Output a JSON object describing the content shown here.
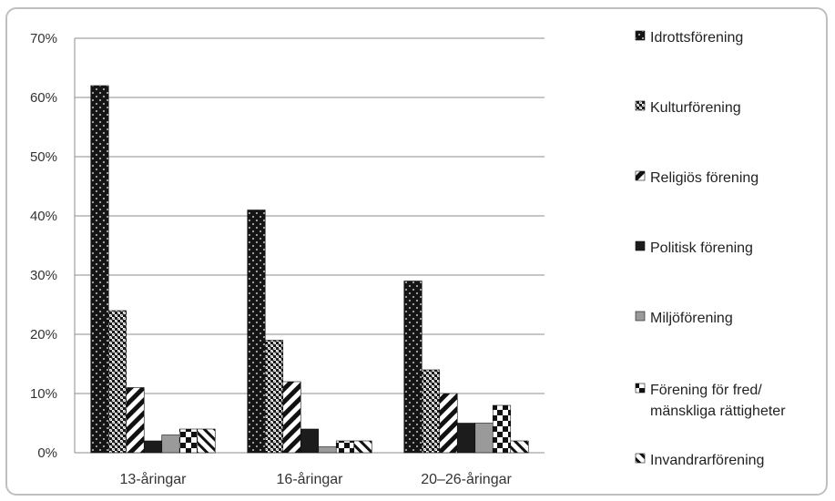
{
  "chart_data": {
    "type": "bar",
    "categories": [
      "13-åringar",
      "16-åringar",
      "20–26-åringar"
    ],
    "series": [
      {
        "name": "Idrottsförening",
        "values": [
          62,
          41,
          29
        ]
      },
      {
        "name": "Kulturförening",
        "values": [
          24,
          19,
          14
        ]
      },
      {
        "name": "Religiös förening",
        "values": [
          11,
          12,
          10
        ]
      },
      {
        "name": "Politisk förening",
        "values": [
          2,
          4,
          5
        ]
      },
      {
        "name": "Miljöförening",
        "values": [
          3,
          1,
          5
        ]
      },
      {
        "name": "Förening för fred/ mänskliga rättigheter",
        "values": [
          4,
          2,
          8
        ]
      },
      {
        "name": "Invandrarförening",
        "values": [
          4,
          2,
          2
        ]
      }
    ],
    "legend_lines": [
      [
        "Idrottsförening"
      ],
      [
        "Kulturförening"
      ],
      [
        "Religiös förening"
      ],
      [
        "Politisk förening"
      ],
      [
        "Miljöförening"
      ],
      [
        "Förening för fred/",
        "mänskliga rättigheter"
      ],
      [
        "Invandrarförening"
      ]
    ],
    "yticks": [
      0,
      10,
      20,
      30,
      40,
      50,
      60,
      70
    ],
    "yticklabels": [
      "0%",
      "10%",
      "20%",
      "30%",
      "40%",
      "50%",
      "60%",
      "70%"
    ],
    "ylim": [
      0,
      70
    ],
    "grid": true,
    "legend_position": "right"
  }
}
